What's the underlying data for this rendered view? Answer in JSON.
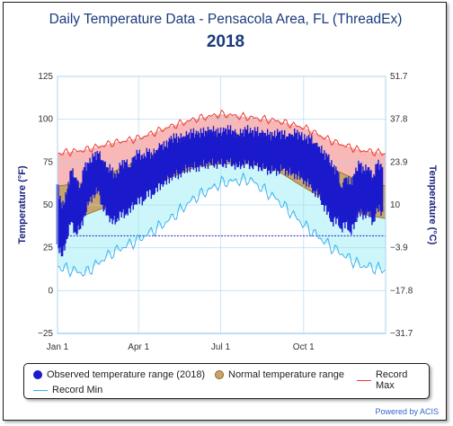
{
  "chart_data": {
    "type": "area",
    "title": "Daily Temperature Data - Pensacola Area, FL (ThreadEx)",
    "subtitle": "2018",
    "ylabel_left": "Temperature (°F)",
    "ylabel_right": "Temperature (°C)",
    "ylim_left": [
      -25,
      125
    ],
    "ylim_right": [
      -31.7,
      51.7
    ],
    "left_ticks": [
      "125",
      "100",
      "75",
      "50",
      "25",
      "0",
      "−25"
    ],
    "right_ticks": [
      "51.7",
      "37.8",
      "23.9",
      "10",
      "−3.9",
      "−17.8",
      "−31.7"
    ],
    "x_ticks": [
      "Jan 1",
      "Apr 1",
      "Jul 1",
      "Oct 1"
    ],
    "freezing_line_f": 32,
    "normal_range": {
      "x_day": [
        0,
        30,
        60,
        91,
        121,
        152,
        182,
        213,
        244,
        274,
        305,
        335,
        364
      ],
      "high": [
        61,
        63,
        69,
        76,
        83,
        89,
        91,
        91,
        88,
        81,
        71,
        64,
        61
      ],
      "low": [
        42,
        44,
        50,
        57,
        65,
        72,
        74,
        74,
        70,
        60,
        51,
        45,
        42
      ]
    },
    "record_max": {
      "x_day": [
        0,
        30,
        60,
        91,
        121,
        152,
        182,
        213,
        244,
        274,
        305,
        335,
        364
      ],
      "values": [
        80,
        82,
        86,
        89,
        95,
        100,
        103,
        101,
        99,
        95,
        87,
        82,
        80
      ]
    },
    "record_min": {
      "x_day": [
        0,
        30,
        60,
        91,
        121,
        152,
        182,
        213,
        244,
        274,
        305,
        335,
        364
      ],
      "values": [
        14,
        10,
        22,
        30,
        40,
        54,
        63,
        65,
        53,
        38,
        25,
        15,
        12
      ]
    },
    "observed_2018": {
      "x_day": [
        0,
        5,
        10,
        15,
        20,
        25,
        30,
        35,
        40,
        45,
        50,
        55,
        60,
        65,
        70,
        75,
        80,
        85,
        90,
        95,
        100,
        105,
        110,
        115,
        120,
        125,
        130,
        135,
        140,
        145,
        150,
        155,
        160,
        165,
        170,
        175,
        180,
        185,
        190,
        195,
        200,
        205,
        210,
        215,
        220,
        225,
        230,
        235,
        240,
        245,
        250,
        255,
        260,
        265,
        270,
        275,
        280,
        285,
        290,
        295,
        300,
        305,
        310,
        315,
        320,
        325,
        330,
        335,
        340,
        345,
        350,
        355,
        360
      ],
      "high": [
        62,
        48,
        56,
        70,
        66,
        60,
        72,
        74,
        78,
        80,
        76,
        72,
        70,
        66,
        73,
        75,
        72,
        78,
        80,
        77,
        81,
        79,
        82,
        85,
        84,
        88,
        89,
        89,
        90,
        91,
        92,
        91,
        92,
        93,
        94,
        93,
        92,
        93,
        94,
        93,
        91,
        92,
        94,
        92,
        93,
        92,
        92,
        91,
        90,
        92,
        91,
        90,
        91,
        92,
        90,
        88,
        89,
        86,
        84,
        80,
        78,
        72,
        70,
        60,
        66,
        62,
        68,
        74,
        70,
        72,
        66,
        74,
        72
      ],
      "low": [
        27,
        20,
        30,
        40,
        34,
        36,
        44,
        52,
        56,
        58,
        50,
        44,
        42,
        40,
        46,
        44,
        48,
        50,
        54,
        52,
        58,
        56,
        60,
        62,
        64,
        66,
        68,
        68,
        70,
        72,
        72,
        72,
        73,
        74,
        74,
        74,
        74,
        74,
        75,
        74,
        72,
        74,
        74,
        73,
        73,
        72,
        71,
        70,
        70,
        70,
        71,
        70,
        68,
        68,
        66,
        64,
        62,
        58,
        56,
        50,
        46,
        40,
        42,
        36,
        40,
        34,
        40,
        46,
        44,
        46,
        40,
        48,
        46
      ]
    }
  },
  "legend": {
    "observed": "Observed temperature range (2018)",
    "normal": "Normal temperature range",
    "record_max": "Record Max",
    "record_min": "Record Min"
  },
  "credit": "Powered by ACIS",
  "colors": {
    "record_max": "#ee3b2f",
    "record_min": "#3ab1ee",
    "observed": "#1a1acc",
    "normal_fill": "#c9a56b",
    "normal_stroke": "#8f6a22",
    "above_normal_fill": "#f8b8b8",
    "below_normal_fill": "#cdf6fa",
    "freezing": "#2222cc",
    "axis": "#1a237e",
    "grid": "#a9d4ef"
  }
}
